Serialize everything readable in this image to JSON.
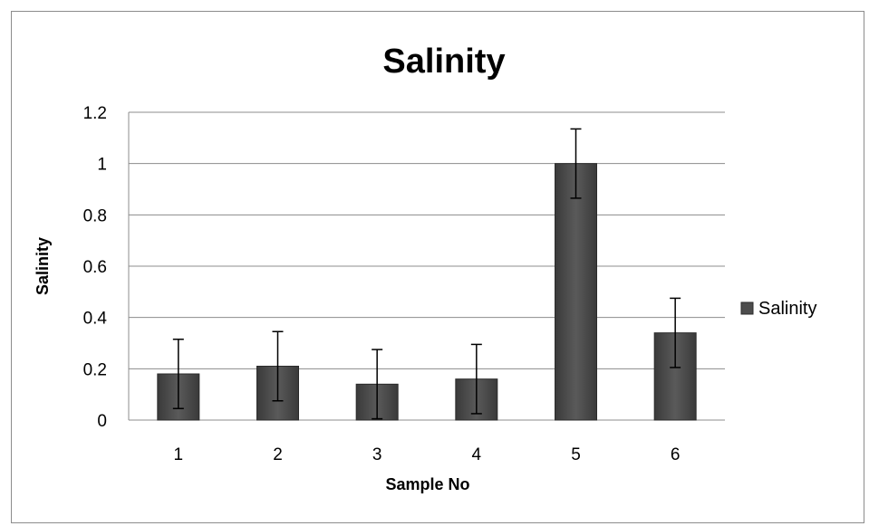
{
  "chart_data": {
    "type": "bar",
    "title": "Salinity",
    "xlabel": "Sample No",
    "ylabel": "Salinity",
    "categories": [
      "1",
      "2",
      "3",
      "4",
      "5",
      "6"
    ],
    "series": [
      {
        "name": "Salinity",
        "values": [
          0.18,
          0.21,
          0.14,
          0.16,
          1.0,
          0.34
        ],
        "error": [
          0.135,
          0.135,
          0.135,
          0.135,
          0.135,
          0.135
        ]
      }
    ],
    "ylim": [
      0,
      1.2
    ],
    "yticks": [
      "0",
      "0.2",
      "0.4",
      "0.6",
      "0.8",
      "1",
      "1.2"
    ],
    "grid": true,
    "legend_position": "right",
    "colors": {
      "bar": "#4d4d4d",
      "bar_edge": "#2b2b2b",
      "grid": "#8c8c8c"
    }
  }
}
